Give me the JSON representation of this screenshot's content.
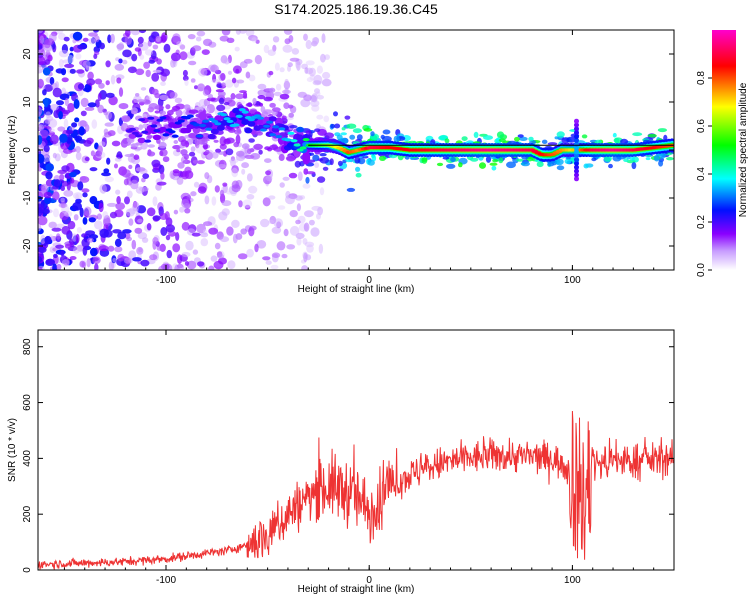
{
  "figure": {
    "title": "S174.2025.186.19.36.C45"
  },
  "chart_data": [
    {
      "type": "heatmap",
      "name": "spectrogram",
      "xlabel": "Height of straight line (km)",
      "ylabel": "Frequency (Hz)",
      "xlim": [
        -163,
        150
      ],
      "ylim": [
        -25,
        25
      ],
      "x_ticks": [
        -100,
        0,
        100
      ],
      "y_ticks": [
        -20,
        -10,
        0,
        10,
        20
      ],
      "colorbar": {
        "label": "Normalized spectral amplitude",
        "range": [
          0,
          1
        ],
        "ticks": [
          "0.0",
          "0.2",
          "0.4",
          "0.6",
          "0.8"
        ],
        "colors": [
          "#ffffff",
          "#8a00ff",
          "#0010ff",
          "#00ffff",
          "#00ff00",
          "#ffff00",
          "#ff0000",
          "#ff00ff"
        ]
      },
      "ridge": {
        "description_points_x": [
          -115,
          -100,
          -90,
          -80,
          -70,
          -60,
          -50,
          -45,
          -40,
          -30,
          -20,
          -15,
          -10,
          -5,
          0,
          10,
          20,
          40,
          60,
          80,
          85,
          90,
          95,
          100,
          105,
          110,
          120,
          130,
          140,
          150
        ],
        "frequency_hz": [
          4,
          5,
          4.5,
          5,
          6,
          7,
          5,
          4,
          2,
          1,
          1,
          0.5,
          -0.5,
          0,
          0.5,
          0.5,
          0,
          0,
          0,
          0,
          -1,
          -1,
          0,
          0,
          0,
          0,
          0,
          0,
          0.5,
          1
        ],
        "amplitude": [
          0.2,
          0.25,
          0.25,
          0.3,
          0.35,
          0.35,
          0.3,
          0.3,
          0.35,
          0.5,
          0.6,
          0.7,
          0.8,
          0.75,
          0.9,
          0.85,
          0.85,
          0.9,
          0.95,
          0.9,
          0.85,
          0.8,
          0.75,
          0.7,
          0.8,
          0.9,
          0.95,
          0.9,
          0.85,
          0.8
        ]
      }
    },
    {
      "type": "line",
      "name": "snr",
      "xlabel": "Height of straight line (km)",
      "ylabel": "SNR (10 * v/v)",
      "xlim": [
        -163,
        150
      ],
      "ylim": [
        0,
        860
      ],
      "x_ticks": [
        -100,
        0,
        100
      ],
      "y_ticks": [
        0,
        200,
        400,
        600,
        800
      ],
      "color": "#ee3333",
      "series": [
        {
          "x": [
            -163,
            -140,
            -120,
            -100,
            -90,
            -80,
            -70,
            -60,
            -50,
            -45,
            -40,
            -35,
            -30,
            -25,
            -20,
            -15,
            -10,
            -5,
            0,
            5,
            10,
            15,
            20,
            30,
            40,
            50,
            60,
            70,
            80,
            90,
            95,
            100,
            103,
            105,
            107,
            110,
            120,
            130,
            140,
            150
          ],
          "y": [
            20,
            25,
            30,
            40,
            50,
            60,
            70,
            90,
            130,
            160,
            200,
            230,
            260,
            290,
            300,
            290,
            280,
            250,
            200,
            250,
            300,
            320,
            340,
            370,
            390,
            400,
            410,
            410,
            405,
            400,
            380,
            350,
            300,
            120,
            250,
            380,
            390,
            390,
            395,
            400
          ]
        }
      ]
    }
  ]
}
